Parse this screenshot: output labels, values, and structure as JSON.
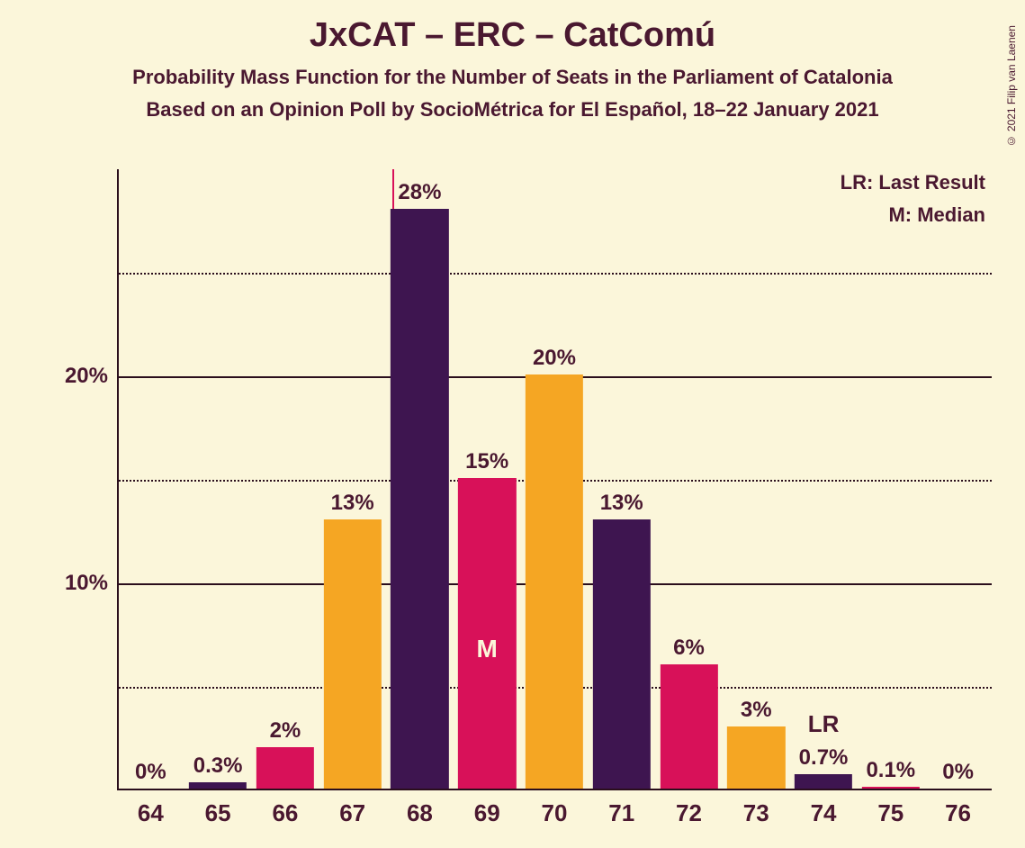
{
  "title": "JxCAT – ERC – CatComú",
  "subtitle1": "Probability Mass Function for the Number of Seats in the Parliament of Catalonia",
  "subtitle2": "Based on an Opinion Poll by SocioMétrica for El Español, 18–22 January 2021",
  "copyright": "© 2021 Filip van Laenen",
  "legend": {
    "lr": "LR: Last Result",
    "m": "M: Median"
  },
  "chart": {
    "type": "bar",
    "background_color": "#fbf6da",
    "text_color": "#4a1830",
    "axis_color": "#2a0e1c",
    "grid_color": "#2a0e1c",
    "title_fontsize": 38,
    "subtitle_fontsize": 22,
    "tick_fontsize": 24,
    "barlabel_fontsize": 24,
    "ylim": [
      0,
      30
    ],
    "y_major_ticks": [
      10,
      20
    ],
    "y_minor_ticks": [
      5,
      15,
      25
    ],
    "bar_width": 0.86,
    "median_seat": 69,
    "lr_seat": 74,
    "colors": {
      "purple": "#3e1550",
      "magenta": "#d81159",
      "amber": "#f5a623",
      "line": "#d81159"
    },
    "categories": [
      64,
      65,
      66,
      67,
      68,
      69,
      70,
      71,
      72,
      73,
      74,
      75,
      76
    ],
    "values": [
      0,
      0.3,
      2,
      13,
      28,
      15,
      20,
      13,
      6,
      3,
      0.7,
      0.1,
      0
    ],
    "value_labels": [
      "0%",
      "0.3%",
      "2%",
      "13%",
      "28%",
      "15%",
      "20%",
      "13%",
      "6%",
      "3%",
      "0.7%",
      "0.1%",
      "0%"
    ],
    "bar_colors": [
      "#f5a623",
      "#3e1550",
      "#d81159",
      "#f5a623",
      "#3e1550",
      "#d81159",
      "#f5a623",
      "#3e1550",
      "#d81159",
      "#f5a623",
      "#3e1550",
      "#d81159",
      "#f5a623"
    ]
  }
}
